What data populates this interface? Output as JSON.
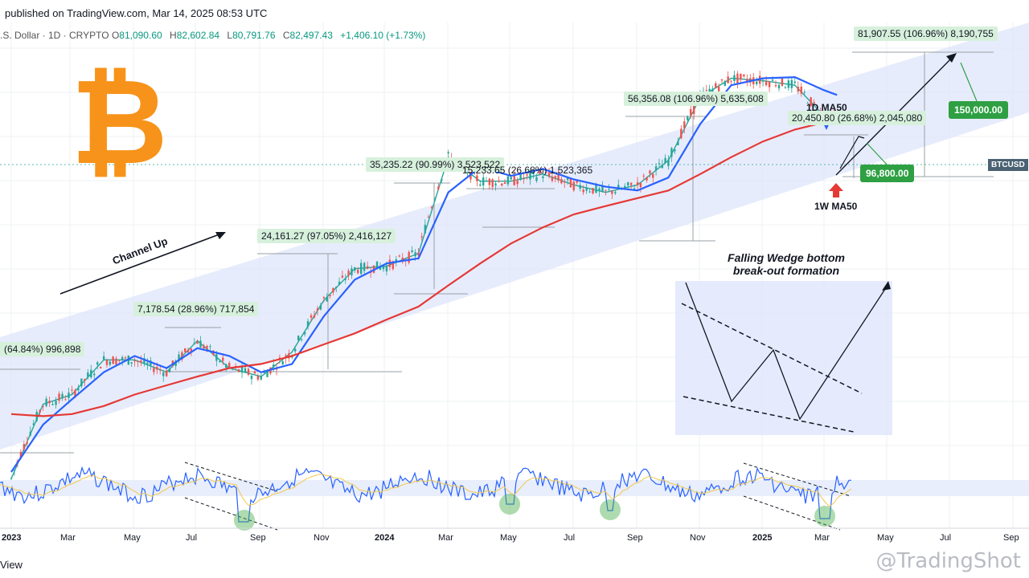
{
  "header": {
    "published": "published on TradingView.com, Mar 14, 2025 08:53 UTC",
    "symbol_prefix": ".S. Dollar · 1D · CRYPTO",
    "open_label": "O",
    "open": "81,090.60",
    "high_label": "H",
    "high": "82,602.84",
    "low_label": "L",
    "low": "80,791.76",
    "close_label": "C",
    "close": "82,497.43",
    "change": "+1,406.10 (+1.73%)"
  },
  "footer": {
    "view": "View",
    "watermark": "@TradingShot"
  },
  "colors": {
    "ma50": "#2962ff",
    "ma50w": "#e53935",
    "channel": "#dfe6fb",
    "tag_bg": "#d7f0dc",
    "target": "#2ea043",
    "rsi": "#2962ff",
    "rsi_signal": "#f2c84b"
  },
  "chart_data": {
    "type": "line",
    "title": "",
    "x_axis_labels": [
      "2023",
      "Mar",
      "May",
      "Jul",
      "Sep",
      "Nov",
      "2024",
      "Mar",
      "May",
      "Jul",
      "Sep",
      "Nov",
      "2025",
      "Mar",
      "May",
      "Jul",
      "Sep"
    ],
    "price_label": "BTCUSD",
    "x_dates": [
      "2023-01-01",
      "2023-02-01",
      "2023-03-01",
      "2023-04-01",
      "2023-05-01",
      "2023-06-01",
      "2023-07-01",
      "2023-08-01",
      "2023-09-01",
      "2023-10-01",
      "2023-11-01",
      "2023-12-01",
      "2024-01-01",
      "2024-02-01",
      "2024-03-01",
      "2024-04-01",
      "2024-05-01",
      "2024-06-01",
      "2024-07-01",
      "2024-08-01",
      "2024-09-01",
      "2024-10-01",
      "2024-11-01",
      "2024-12-01",
      "2025-01-01",
      "2025-02-01",
      "2025-03-01",
      "2025-03-14"
    ],
    "series": [
      {
        "name": "",
        "values": [
          16500,
          23000,
          24000,
          28000,
          28000,
          26500,
          30500,
          27000,
          26000,
          29000,
          36500,
          42000,
          42500,
          45000,
          69000,
          62000,
          62000,
          64000,
          61000,
          59000,
          61000,
          68000,
          90000,
          98000,
          97000,
          95000,
          83000,
          82497
        ]
      },
      {
        "name": "1D MA50",
        "values": [
          17000,
          21000,
          23500,
          26500,
          28500,
          27000,
          29500,
          28500,
          26500,
          27500,
          34000,
          40000,
          43000,
          44000,
          59000,
          66000,
          63500,
          65500,
          62500,
          60500,
          59500,
          63000,
          80000,
          95000,
          98000,
          98500,
          93000,
          91000
        ]
      },
      {
        "name": "1W MA50",
        "values": [
          22000,
          21800,
          22000,
          22800,
          24000,
          25000,
          26000,
          27000,
          27500,
          28500,
          30000,
          31500,
          33500,
          35500,
          39000,
          43000,
          47000,
          50500,
          53500,
          55500,
          57500,
          59500,
          64000,
          69000,
          74000,
          78000,
          80500,
          81000
        ]
      }
    ],
    "annotations": {
      "channel_up": "Channel Up",
      "ma50_1d": "1D MA50",
      "ma50_1w": "1W MA50",
      "wedge_title_1": "Falling Wedge bottom",
      "wedge_title_2": "break-out formation",
      "measure_1": "(64.84%) 996,898",
      "measure_2": "7,178.54 (28.96%) 717,854",
      "measure_3": "24,161.27 (97.05%) 2,416,127",
      "measure_4": "35,235.22 (90.99%) 3,523,522",
      "measure_5": "15,233.65 (26.68%) 1,523,365",
      "measure_6": "56,356.08 (106.96%) 5,635,608",
      "measure_7": "20,450.80 (26.68%) 2,045,080",
      "measure_8": "81,907.55 (106.96%) 8,190,755",
      "target_1": "96,800.00",
      "target_2": "150,000.00"
    }
  }
}
